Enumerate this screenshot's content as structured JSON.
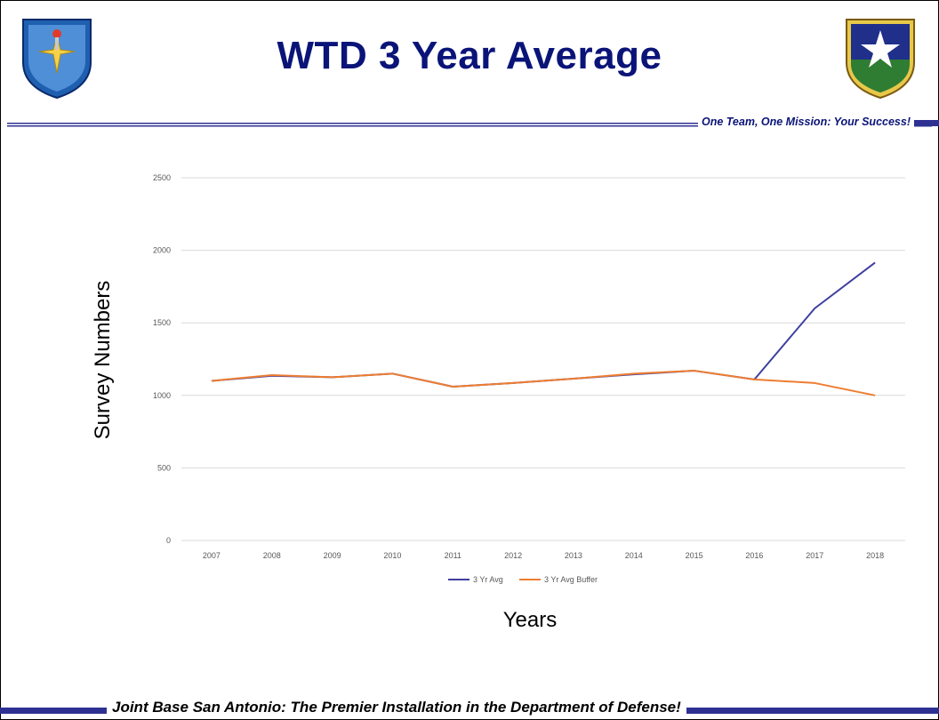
{
  "slide": {
    "title": "WTD 3 Year Average",
    "tagline": "One Team, One Mission:  Your Success!",
    "footer": "Joint Base San Antonio:  The Premier Installation in the Department of Defense!",
    "accent_color": "#0a1478",
    "bar_color": "#2e3192"
  },
  "chart_data": {
    "type": "line",
    "x": [
      "2007",
      "2008",
      "2009",
      "2010",
      "2011",
      "2012",
      "2013",
      "2014",
      "2015",
      "2016",
      "2017",
      "2018"
    ],
    "series": [
      {
        "name": "3 Yr Avg",
        "color": "#3f3fa0",
        "values": [
          1100,
          1135,
          1125,
          1150,
          1060,
          1085,
          1115,
          1145,
          1170,
          1110,
          1600,
          1915
        ]
      },
      {
        "name": "3 Yr Avg Buffer",
        "color": "#ed7d31",
        "values": [
          1100,
          1140,
          1125,
          1150,
          1060,
          1085,
          1115,
          1150,
          1170,
          1110,
          1085,
          1000
        ]
      }
    ],
    "xlabel": "Years",
    "ylabel": "Survey Numbers",
    "ylim": [
      0,
      2500
    ],
    "yticks": [
      0,
      500,
      1000,
      1500,
      2000,
      2500
    ],
    "grid": true,
    "legend": "bottom"
  }
}
